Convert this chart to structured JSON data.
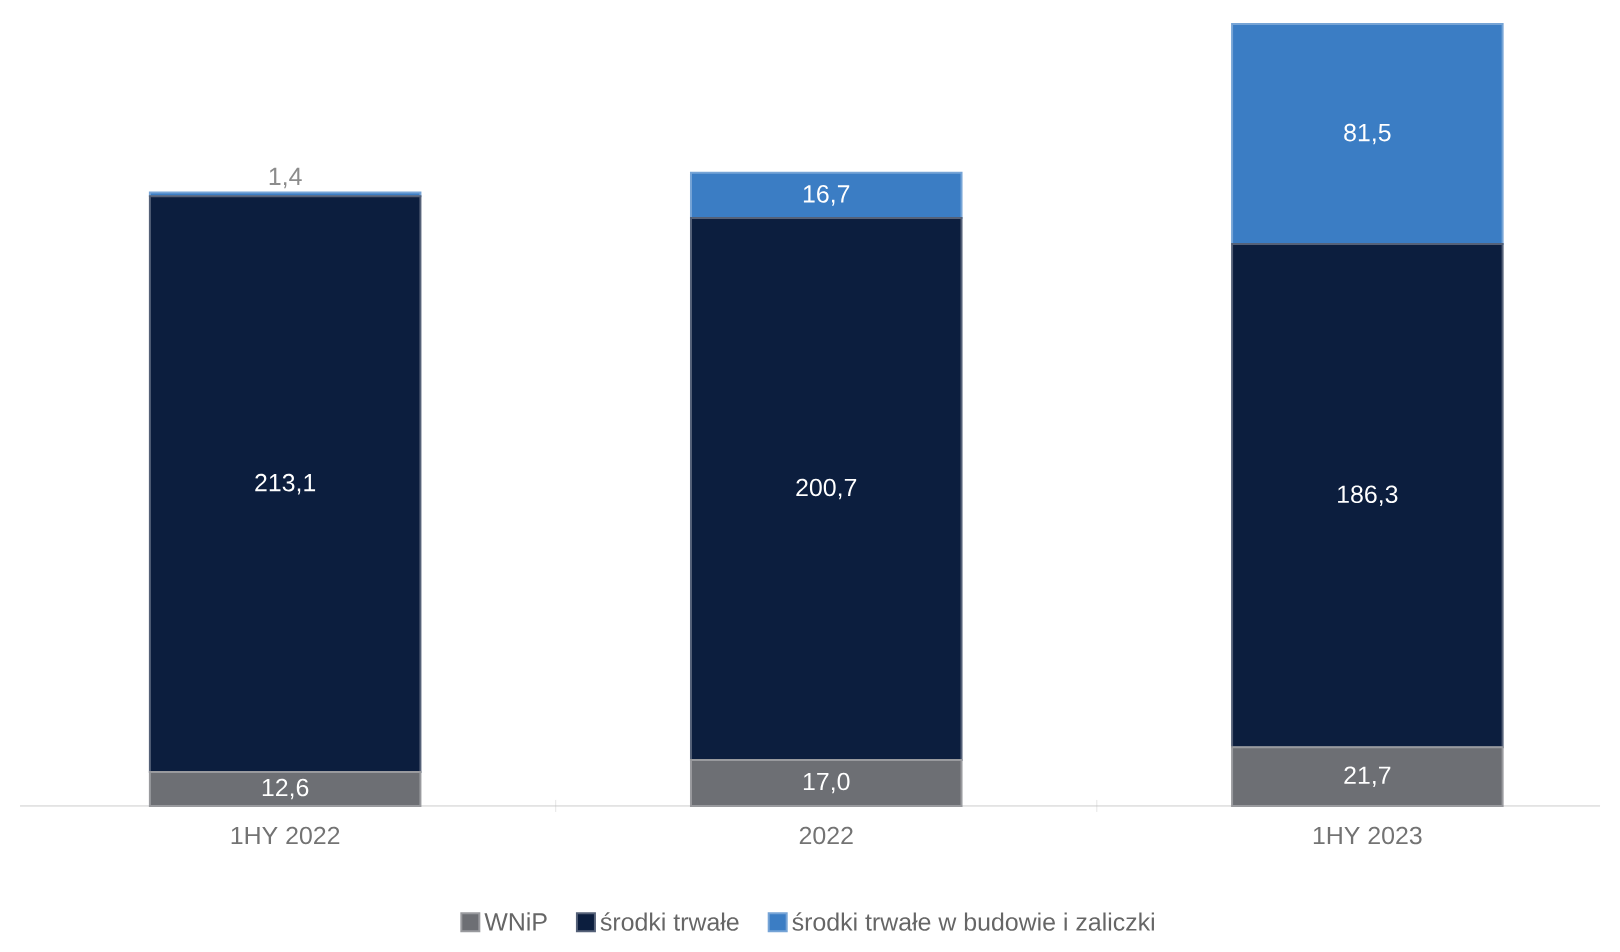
{
  "chart_data": {
    "type": "bar",
    "stacked": true,
    "categories": [
      "1HY 2022",
      "2022",
      "1HY 2023"
    ],
    "series": [
      {
        "name": "WNiP",
        "color": "#6d6f74",
        "values": [
          12.6,
          17.0,
          21.7
        ],
        "value_labels": [
          "12,6",
          "17,0",
          "21,7"
        ]
      },
      {
        "name": "środki trwałe",
        "color": "#0c1e3e",
        "values": [
          213.1,
          200.7,
          186.3
        ],
        "value_labels": [
          "213,1",
          "200,7",
          "186,3"
        ]
      },
      {
        "name": "środki trwałe w budowie i zaliczki",
        "color": "#3b7dc4",
        "values": [
          1.4,
          16.7,
          81.5
        ],
        "value_labels": [
          "1,4",
          "16,7",
          "81,5"
        ]
      }
    ],
    "legend": "bottom",
    "grid": false
  }
}
